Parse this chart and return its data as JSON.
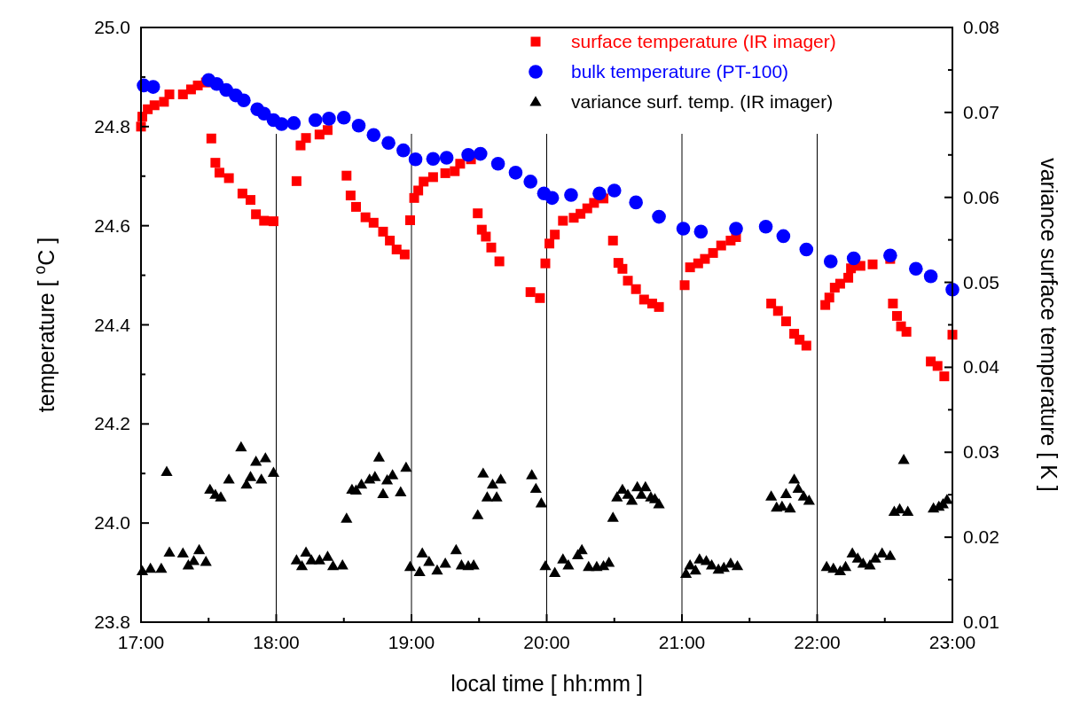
{
  "chart_data": {
    "type": "scatter",
    "xlabel": "local time [ hh:mm ]",
    "ylabel": "temperature [ $^{o}$C ]",
    "y2label": "variance surface temperature [ K ]",
    "xlim": [
      17,
      23
    ],
    "xticks": [
      {
        "value": 17,
        "label": "17:00"
      },
      {
        "value": 17.5,
        "label": null
      },
      {
        "value": 18,
        "label": "18:00"
      },
      {
        "value": 18.5,
        "label": null
      },
      {
        "value": 19,
        "label": "19:00"
      },
      {
        "value": 19.5,
        "label": null
      },
      {
        "value": 20,
        "label": "20:00"
      },
      {
        "value": 20.5,
        "label": null
      },
      {
        "value": 21,
        "label": "21:00"
      },
      {
        "value": 21.5,
        "label": null
      },
      {
        "value": 22,
        "label": "22:00"
      },
      {
        "value": 22.5,
        "label": null
      },
      {
        "value": 23,
        "label": "23:00"
      }
    ],
    "ylim": [
      23.8,
      25.0
    ],
    "yticks": [
      23.8,
      {
        "value": 23.9,
        "label": null
      },
      {
        "value": 24,
        "label": "24.0"
      },
      {
        "value": 24.1,
        "label": null
      },
      24.2,
      {
        "value": 24.3,
        "label": null
      },
      24.4,
      {
        "value": 24.5,
        "label": null
      },
      24.6,
      {
        "value": 24.7,
        "label": null
      },
      24.8,
      {
        "value": 24.9,
        "label": null
      },
      {
        "value": 25,
        "label": "25.0"
      }
    ],
    "y2lim": [
      0.01,
      0.08
    ],
    "y2ticks": [
      0.01,
      {
        "value": 0.015,
        "label": null
      },
      0.02,
      {
        "value": 0.025,
        "label": null
      },
      0.03,
      {
        "value": 0.035,
        "label": null
      },
      0.04,
      {
        "value": 0.045,
        "label": null
      },
      0.05,
      {
        "value": 0.055,
        "label": null
      },
      0.06,
      {
        "value": 0.065,
        "label": null
      },
      0.07,
      {
        "value": 0.075,
        "label": null
      },
      0.08
    ],
    "grid": "x",
    "legend": "top right",
    "series": [
      {
        "name": "surface temperature (IR imager)",
        "color": "#ff0000",
        "marker": "square",
        "x": [
          17.0,
          17.01,
          17.05,
          17.1,
          17.17,
          17.21,
          17.31,
          17.37,
          17.42,
          17.48,
          17.52,
          17.55,
          17.58,
          17.65,
          17.75,
          17.81,
          17.85,
          17.91,
          17.98,
          18.15,
          18.18,
          18.22,
          18.32,
          18.38,
          18.52,
          18.55,
          18.59,
          18.66,
          18.72,
          18.79,
          18.84,
          18.89,
          18.95,
          18.99,
          19.02,
          19.05,
          19.09,
          19.16,
          19.25,
          19.32,
          19.36,
          19.44,
          19.49,
          19.52,
          19.55,
          19.59,
          19.65,
          19.88,
          19.95,
          19.99,
          20.02,
          20.06,
          20.12,
          20.2,
          20.25,
          20.3,
          20.35,
          20.42,
          20.49,
          20.53,
          20.56,
          20.6,
          20.66,
          20.72,
          20.78,
          20.83,
          21.02,
          21.06,
          21.12,
          21.17,
          21.23,
          21.29,
          21.36,
          21.4,
          21.66,
          21.71,
          21.77,
          21.83,
          21.87,
          21.92,
          22.06,
          22.09,
          22.13,
          22.17,
          22.23,
          22.25,
          22.32,
          22.41,
          22.54,
          22.56,
          22.59,
          22.62,
          22.66,
          22.84,
          22.89,
          22.94,
          23.0
        ],
        "values": [
          24.8,
          24.82,
          24.835,
          24.843,
          24.85,
          24.865,
          24.865,
          24.875,
          24.883,
          24.889,
          24.776,
          24.727,
          24.707,
          24.696,
          24.665,
          24.652,
          24.623,
          24.61,
          24.609,
          24.69,
          24.762,
          24.777,
          24.784,
          24.793,
          24.701,
          24.661,
          24.638,
          24.617,
          24.606,
          24.588,
          24.57,
          24.552,
          24.542,
          24.611,
          24.656,
          24.671,
          24.689,
          24.698,
          24.706,
          24.71,
          24.725,
          24.734,
          24.625,
          24.592,
          24.578,
          24.556,
          24.528,
          24.466,
          24.454,
          24.524,
          24.564,
          24.582,
          24.61,
          24.616,
          24.624,
          24.635,
          24.646,
          24.655,
          24.57,
          24.525,
          24.513,
          24.489,
          24.472,
          24.451,
          24.443,
          24.436,
          24.48,
          24.516,
          24.524,
          24.533,
          24.545,
          24.56,
          24.57,
          24.577,
          24.443,
          24.428,
          24.407,
          24.382,
          24.37,
          24.358,
          24.44,
          24.455,
          24.475,
          24.483,
          24.495,
          24.514,
          24.519,
          24.522,
          24.533,
          24.443,
          24.418,
          24.397,
          24.386,
          24.326,
          24.317,
          24.296,
          24.38
        ]
      },
      {
        "name": "bulk temperature (PT-100)",
        "color": "#0000ff",
        "marker": "circle",
        "x": [
          17.02,
          17.09,
          17.5,
          17.56,
          17.63,
          17.7,
          17.76,
          17.86,
          17.91,
          17.98,
          18.04,
          18.13,
          18.29,
          18.39,
          18.5,
          18.61,
          18.72,
          18.83,
          18.94,
          19.03,
          19.16,
          19.26,
          19.42,
          19.51,
          19.64,
          19.77,
          19.88,
          19.98,
          20.04,
          20.18,
          20.39,
          20.5,
          20.66,
          20.83,
          21.01,
          21.14,
          21.4,
          21.62,
          21.75,
          21.92,
          22.1,
          22.27,
          22.54,
          22.73,
          22.84,
          23.0
        ],
        "values": [
          24.883,
          24.88,
          24.894,
          24.886,
          24.874,
          24.863,
          24.853,
          24.835,
          24.826,
          24.813,
          24.805,
          24.807,
          24.813,
          24.816,
          24.818,
          24.802,
          24.783,
          24.767,
          24.752,
          24.734,
          24.735,
          24.737,
          24.743,
          24.745,
          24.725,
          24.707,
          24.689,
          24.665,
          24.656,
          24.662,
          24.665,
          24.671,
          24.647,
          24.618,
          24.594,
          24.588,
          24.594,
          24.598,
          24.579,
          24.552,
          24.528,
          24.534,
          24.54,
          24.513,
          24.498,
          24.471
        ]
      },
      {
        "name": "variance surf. temp. (IR imager)",
        "color": "#000000",
        "marker": "triangle",
        "axis": "y2",
        "x": [
          17.01,
          17.07,
          17.15,
          17.19,
          17.21,
          17.31,
          17.35,
          17.39,
          17.43,
          17.48,
          17.51,
          17.55,
          17.59,
          17.65,
          17.74,
          17.78,
          17.81,
          17.85,
          17.89,
          17.92,
          17.98,
          18.15,
          18.19,
          18.22,
          18.26,
          18.32,
          18.38,
          18.42,
          18.49,
          18.52,
          18.56,
          18.59,
          18.63,
          18.69,
          18.73,
          18.76,
          18.79,
          18.82,
          18.86,
          18.92,
          18.96,
          18.99,
          19.06,
          19.08,
          19.13,
          19.19,
          19.25,
          19.33,
          19.37,
          19.42,
          19.46,
          19.49,
          19.53,
          19.56,
          19.6,
          19.63,
          19.66,
          19.89,
          19.92,
          19.96,
          19.99,
          20.06,
          20.12,
          20.16,
          20.23,
          20.26,
          20.31,
          20.37,
          20.42,
          20.46,
          20.49,
          20.52,
          20.56,
          20.6,
          20.63,
          20.67,
          20.7,
          20.73,
          20.77,
          20.8,
          20.83,
          21.03,
          21.06,
          21.1,
          21.13,
          21.18,
          21.22,
          21.27,
          21.31,
          21.36,
          21.41,
          21.66,
          21.7,
          21.74,
          21.77,
          21.8,
          21.83,
          21.86,
          21.9,
          21.94,
          22.07,
          22.12,
          22.17,
          22.21,
          22.26,
          22.3,
          22.34,
          22.39,
          22.43,
          22.48,
          22.54,
          22.57,
          22.61,
          22.64,
          22.67,
          22.86,
          22.9,
          22.93,
          22.96
        ],
        "values": [
          0.016,
          0.0163,
          0.0163,
          0.0277,
          0.0182,
          0.0181,
          0.0167,
          0.0172,
          0.0185,
          0.0171,
          0.0256,
          0.025,
          0.0247,
          0.0268,
          0.0306,
          0.0262,
          0.0271,
          0.0289,
          0.0268,
          0.0293,
          0.0276,
          0.0173,
          0.0166,
          0.0182,
          0.0173,
          0.0173,
          0.0177,
          0.0166,
          0.0167,
          0.0222,
          0.0256,
          0.0255,
          0.0262,
          0.0268,
          0.0271,
          0.0294,
          0.0251,
          0.0267,
          0.0273,
          0.0253,
          0.0282,
          0.0165,
          0.0159,
          0.0181,
          0.0171,
          0.0161,
          0.0169,
          0.0185,
          0.0167,
          0.0166,
          0.0167,
          0.0226,
          0.0275,
          0.0247,
          0.0262,
          0.0247,
          0.0268,
          0.0273,
          0.0257,
          0.024,
          0.0166,
          0.0158,
          0.0174,
          0.0167,
          0.0179,
          0.0185,
          0.0165,
          0.0165,
          0.0166,
          0.017,
          0.0223,
          0.0247,
          0.0256,
          0.025,
          0.0243,
          0.0259,
          0.025,
          0.0259,
          0.0247,
          0.0245,
          0.0239,
          0.0157,
          0.0167,
          0.0161,
          0.0174,
          0.0172,
          0.0167,
          0.0162,
          0.0164,
          0.0169,
          0.0166,
          0.0248,
          0.0235,
          0.0236,
          0.0251,
          0.0234,
          0.0268,
          0.0257,
          0.0248,
          0.0243,
          0.0165,
          0.0163,
          0.016,
          0.0165,
          0.0181,
          0.0175,
          0.0169,
          0.0167,
          0.0175,
          0.0181,
          0.0178,
          0.023,
          0.0233,
          0.0291,
          0.023,
          0.0234,
          0.0236,
          0.0239,
          0.0244
        ]
      }
    ]
  }
}
